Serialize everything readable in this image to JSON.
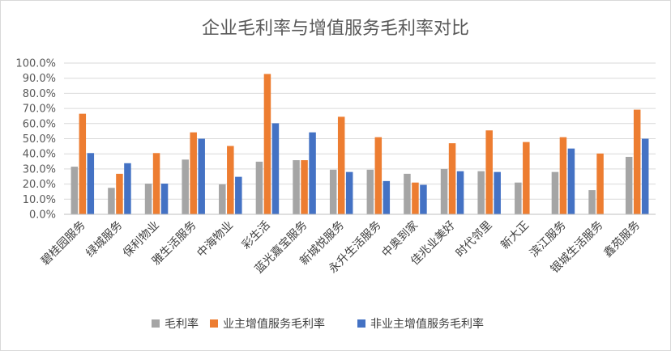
{
  "chart_data": {
    "type": "bar",
    "title": "企业毛利率与增值服务毛利率对比",
    "categories": [
      "碧桂园服务",
      "绿城服务",
      "保利物业",
      "雅生活服务",
      "中海物业",
      "彩生活",
      "蓝光嘉宝服务",
      "新城悦服务",
      "永升生活服务",
      "中奥到家",
      "佳兆业美好",
      "时代邻里",
      "新大正",
      "滨江服务",
      "银城生活服务",
      "鑫苑服务"
    ],
    "series": [
      {
        "name": "毛利率",
        "color": "#a5a5a5",
        "values": [
          31.5,
          17.5,
          20.3,
          36.2,
          19.8,
          34.8,
          35.8,
          29.5,
          29.5,
          26.8,
          30.0,
          28.5,
          21.0,
          28.0,
          16.0,
          38.0
        ]
      },
      {
        "name": "业主增值服务毛利率",
        "color": "#ed7d31",
        "values": [
          66.5,
          26.8,
          40.5,
          54.2,
          45.2,
          92.8,
          35.8,
          64.5,
          51.0,
          21.0,
          47.0,
          55.5,
          47.8,
          51.0,
          40.2,
          69.2
        ]
      },
      {
        "name": "非业主增值服务毛利率",
        "color": "#4472c4",
        "values": [
          40.5,
          33.8,
          20.3,
          50.0,
          24.8,
          60.2,
          54.2,
          28.0,
          22.0,
          19.5,
          28.5,
          28.0,
          null,
          43.5,
          null,
          50.0
        ]
      }
    ],
    "ylim": [
      0,
      100
    ],
    "yticks": [
      "0.0%",
      "10.0%",
      "20.0%",
      "30.0%",
      "40.0%",
      "50.0%",
      "60.0%",
      "70.0%",
      "80.0%",
      "90.0%",
      "100.0%"
    ],
    "grid": true,
    "legend_position": "bottom"
  }
}
